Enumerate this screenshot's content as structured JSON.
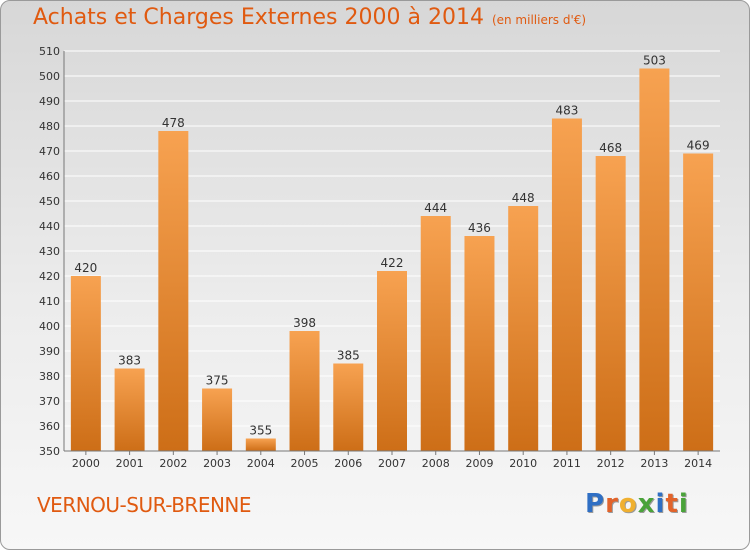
{
  "title": "Achats et Charges Externes 2000 à 2014",
  "unit": "(en milliers d'€)",
  "commune": "VERNOU-SUR-BRENNE",
  "logo": {
    "letters": [
      "P",
      "r",
      "o",
      "x",
      "i",
      "t",
      "i"
    ],
    "colors": [
      "#2f6fc4",
      "#e2632a",
      "#f0b030",
      "#4aa33a",
      "#2f6fc4",
      "#e2632a",
      "#4aa33a"
    ]
  },
  "colors": {
    "accent": "#e05a10",
    "bar_top": "#f7a251",
    "bar_bottom": "#cd6e17",
    "grid": "#ffffff",
    "axis_text": "#333333"
  },
  "chart_data": {
    "type": "bar",
    "title": "Achats et Charges Externes 2000 à 2014",
    "subtitle": "(en milliers d'€)",
    "categories": [
      "2000",
      "2001",
      "2002",
      "2003",
      "2004",
      "2005",
      "2006",
      "2007",
      "2008",
      "2009",
      "2010",
      "2011",
      "2012",
      "2013",
      "2014"
    ],
    "values": [
      420,
      383,
      478,
      375,
      355,
      398,
      385,
      422,
      444,
      436,
      448,
      483,
      468,
      503,
      469
    ],
    "ylim": [
      350,
      510
    ],
    "yticks": [
      350,
      360,
      370,
      380,
      390,
      400,
      410,
      420,
      430,
      440,
      450,
      460,
      470,
      480,
      490,
      500,
      510
    ],
    "grid": true,
    "data_labels": true
  }
}
